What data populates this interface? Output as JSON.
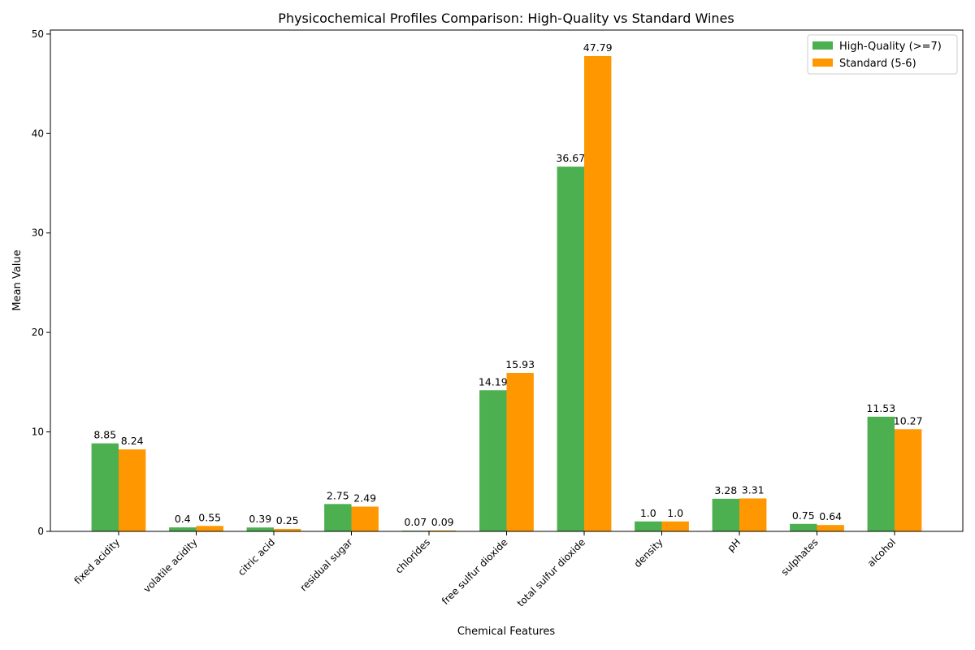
{
  "chart_data": {
    "type": "bar",
    "title": "Physicochemical Profiles Comparison: High-Quality vs Standard Wines",
    "xlabel": "Chemical Features",
    "ylabel": "Mean Value",
    "ylim": [
      0,
      50.4
    ],
    "yticks": [
      0,
      10,
      20,
      30,
      40,
      50
    ],
    "categories": [
      "fixed acidity",
      "volatile acidity",
      "citric acid",
      "residual sugar",
      "chlorides",
      "free sulfur dioxide",
      "total sulfur dioxide",
      "density",
      "pH",
      "sulphates",
      "alcohol"
    ],
    "series": [
      {
        "name": "High-Quality (>=7)",
        "color": "#4caf50",
        "values": [
          8.85,
          0.4,
          0.39,
          2.75,
          0.07,
          14.19,
          36.67,
          1.0,
          3.28,
          0.75,
          11.53
        ],
        "labels": [
          "8.85",
          "0.4",
          "0.39",
          "2.75",
          "0.07",
          "14.19",
          "36.67",
          "1.0",
          "3.28",
          "0.75",
          "11.53"
        ]
      },
      {
        "name": "Standard (5-6)",
        "color": "#ff9800",
        "values": [
          8.24,
          0.55,
          0.25,
          2.49,
          0.09,
          15.93,
          47.79,
          1.0,
          3.31,
          0.64,
          10.27
        ],
        "labels": [
          "8.24",
          "0.55",
          "0.25",
          "2.49",
          "0.09",
          "15.93",
          "47.79",
          "1.0",
          "3.31",
          "0.64",
          "10.27"
        ]
      }
    ],
    "legend": "top-right",
    "grid": false
  }
}
